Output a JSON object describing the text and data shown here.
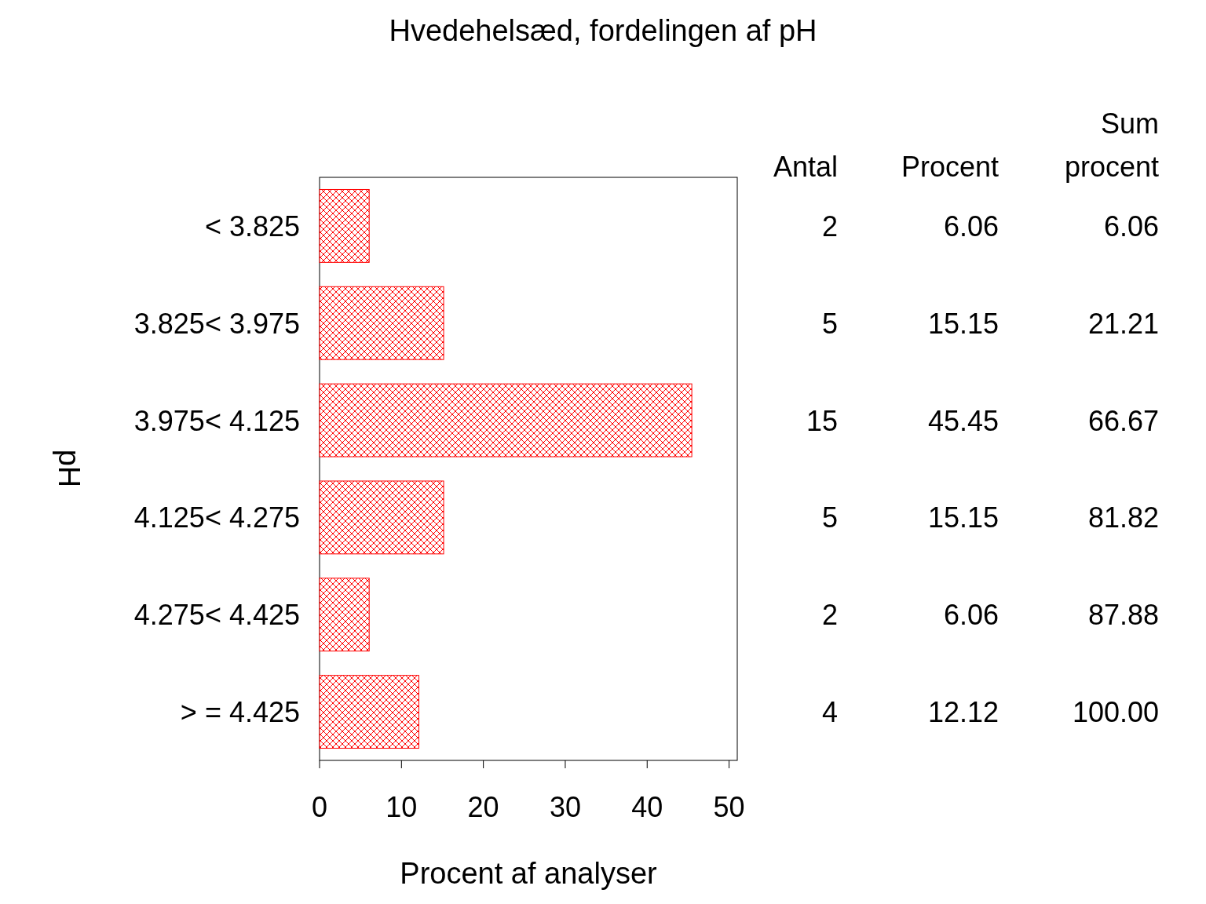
{
  "chart_data": {
    "type": "bar",
    "orientation": "horizontal",
    "title": "Hvedehelsæd, fordelingen af pH",
    "xlabel": "Procent af analyser",
    "ylabel": "pH",
    "categories": [
      "< 3.825",
      "3.825< 3.975",
      "3.975< 4.125",
      "4.125< 4.275",
      "4.275< 4.425",
      "> = 4.425"
    ],
    "values": [
      6.06,
      15.15,
      45.45,
      15.15,
      6.06,
      12.12
    ],
    "color": "#ff0000",
    "xlim": [
      0,
      51
    ],
    "xticks": [
      0,
      10,
      20,
      30,
      40,
      50
    ],
    "data_labels": true,
    "annotations": [
      "Antal",
      "Procent",
      "Sum procent",
      "2",
      "6.06",
      "5",
      "21.21",
      "15",
      "66.67",
      "5",
      "81.82",
      "2",
      "87.88",
      "4",
      "100.00"
    ]
  }
}
